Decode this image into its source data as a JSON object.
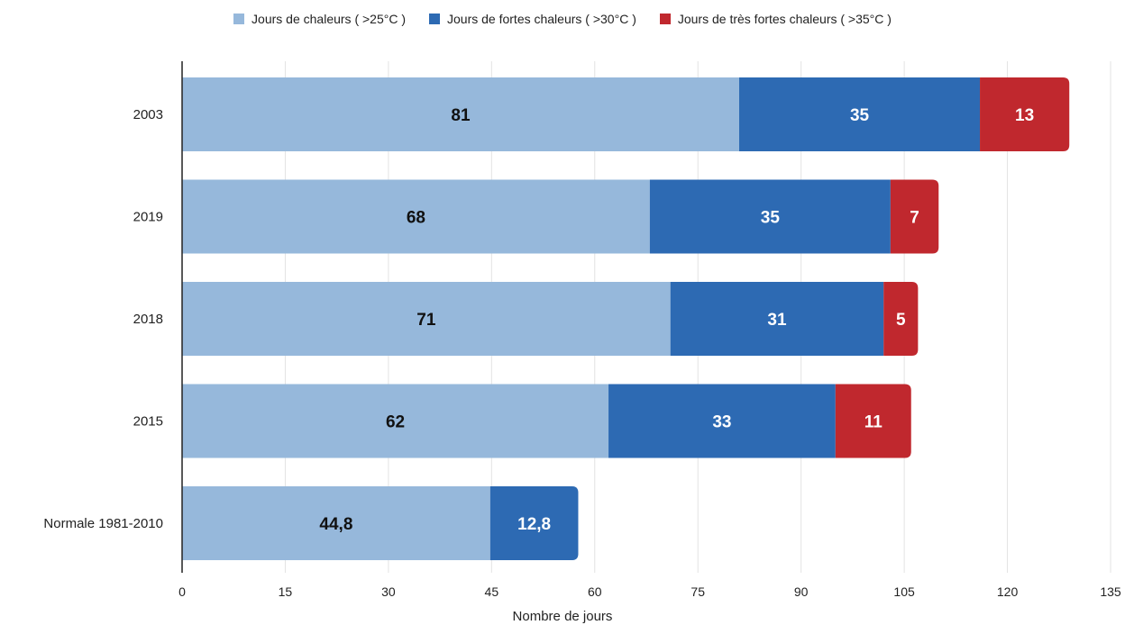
{
  "chart_data": {
    "type": "bar",
    "orientation": "horizontal",
    "stacked": true,
    "categories": [
      "2003",
      "2019",
      "2018",
      "2015",
      "Normale 1981-2010"
    ],
    "series": [
      {
        "name": "Jours de chaleurs ( >25°C )",
        "color": "#96b8db",
        "label_color": "#111111",
        "values": [
          81,
          68,
          71,
          62,
          44.8
        ],
        "labels": [
          "81",
          "68",
          "71",
          "62",
          "44,8"
        ]
      },
      {
        "name": "Jours de fortes chaleurs ( >30°C )",
        "color": "#2d6ab3",
        "label_color": "#ffffff",
        "values": [
          35,
          35,
          31,
          33,
          12.8
        ],
        "labels": [
          "35",
          "35",
          "31",
          "33",
          "12,8"
        ]
      },
      {
        "name": "Jours de très fortes chaleurs  ( >35°C )",
        "color": "#c0282e",
        "label_color": "#ffffff",
        "values": [
          13,
          7,
          5,
          11,
          null
        ],
        "labels": [
          "13",
          "7",
          "5",
          "11",
          ""
        ]
      }
    ],
    "xlabel": "Nombre de jours",
    "ylabel": "",
    "xlim": [
      0,
      135
    ],
    "xticks": [
      "0",
      "15",
      "30",
      "45",
      "60",
      "75",
      "90",
      "105",
      "120",
      "135"
    ],
    "grid": true,
    "legend_position": "top-center"
  }
}
